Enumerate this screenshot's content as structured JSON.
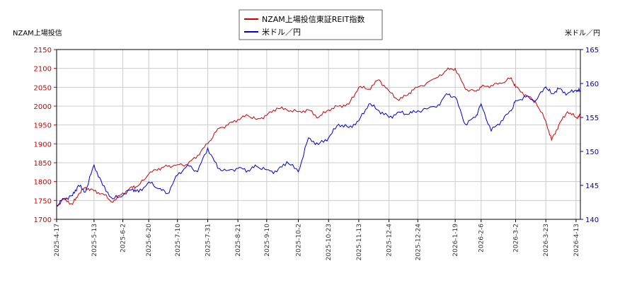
{
  "chart_data": {
    "type": "line",
    "ylabel_left": "NZAM上場投信",
    "ylabel_right": "米ドル／円",
    "legend_position": "top-center",
    "grid": true,
    "y_left_range": [
      1700,
      2150
    ],
    "y_left_ticks": [
      1700,
      1750,
      1800,
      1850,
      1900,
      1950,
      2000,
      2050,
      2100,
      2150
    ],
    "y_right_range": [
      140,
      165
    ],
    "y_right_ticks": [
      140,
      145,
      150,
      155,
      160,
      165
    ],
    "x_range": [
      "2025-04-17",
      "2026-04-16"
    ],
    "x_ticks": [
      "2025-4-17",
      "2025-5-13",
      "2025-6-2",
      "2025-6-20",
      "2025-7-10",
      "2025-7-31",
      "2025-8-21",
      "2025-9-10",
      "2025-10-2",
      "2025-10-23",
      "2025-11-13",
      "2025-12-4",
      "2025-12-24",
      "2026-1-19",
      "2026-2-6",
      "2026-3-2",
      "2026-3-23",
      "2026-4-13"
    ],
    "series": [
      {
        "name": "NZAM上場投信東証REIT指数",
        "color": "#cc0000",
        "axis": "left",
        "points": [
          [
            "2025-04-17",
            1735
          ],
          [
            "2025-04-22",
            1755
          ],
          [
            "2025-04-28",
            1740
          ],
          [
            "2025-05-02",
            1765
          ],
          [
            "2025-05-07",
            1785
          ],
          [
            "2025-05-13",
            1775
          ],
          [
            "2025-05-19",
            1768
          ],
          [
            "2025-05-26",
            1745
          ],
          [
            "2025-06-02",
            1770
          ],
          [
            "2025-06-09",
            1785
          ],
          [
            "2025-06-13",
            1790
          ],
          [
            "2025-06-20",
            1820
          ],
          [
            "2025-06-27",
            1835
          ],
          [
            "2025-07-03",
            1840
          ],
          [
            "2025-07-10",
            1845
          ],
          [
            "2025-07-17",
            1845
          ],
          [
            "2025-07-24",
            1870
          ],
          [
            "2025-07-31",
            1900
          ],
          [
            "2025-08-07",
            1940
          ],
          [
            "2025-08-14",
            1950
          ],
          [
            "2025-08-21",
            1965
          ],
          [
            "2025-08-28",
            1975
          ],
          [
            "2025-09-03",
            1965
          ],
          [
            "2025-09-10",
            1975
          ],
          [
            "2025-09-17",
            1995
          ],
          [
            "2025-09-24",
            1990
          ],
          [
            "2025-10-02",
            1985
          ],
          [
            "2025-10-09",
            1990
          ],
          [
            "2025-10-16",
            1970
          ],
          [
            "2025-10-23",
            1990
          ],
          [
            "2025-10-30",
            2000
          ],
          [
            "2025-11-06",
            2005
          ],
          [
            "2025-11-13",
            2050
          ],
          [
            "2025-11-20",
            2045
          ],
          [
            "2025-11-27",
            2070
          ],
          [
            "2025-12-04",
            2040
          ],
          [
            "2025-12-11",
            2015
          ],
          [
            "2025-12-18",
            2035
          ],
          [
            "2025-12-24",
            2050
          ],
          [
            "2026-01-06",
            2075
          ],
          [
            "2026-01-13",
            2095
          ],
          [
            "2026-01-19",
            2100
          ],
          [
            "2026-01-26",
            2045
          ],
          [
            "2026-02-02",
            2040
          ],
          [
            "2026-02-06",
            2050
          ],
          [
            "2026-02-13",
            2055
          ],
          [
            "2026-02-20",
            2060
          ],
          [
            "2026-02-27",
            2075
          ],
          [
            "2026-03-02",
            2050
          ],
          [
            "2026-03-09",
            2030
          ],
          [
            "2026-03-16",
            2010
          ],
          [
            "2026-03-23",
            1960
          ],
          [
            "2026-03-27",
            1910
          ],
          [
            "2026-04-01",
            1950
          ],
          [
            "2026-04-07",
            1985
          ],
          [
            "2026-04-13",
            1970
          ],
          [
            "2026-04-16",
            1975
          ]
        ]
      },
      {
        "name": "米ドル／円",
        "color": "#0000cc",
        "axis": "right",
        "points": [
          [
            "2025-04-17",
            142.0
          ],
          [
            "2025-04-22",
            143.0
          ],
          [
            "2025-04-28",
            143.5
          ],
          [
            "2025-05-02",
            145.0
          ],
          [
            "2025-05-07",
            144.0
          ],
          [
            "2025-05-13",
            148.0
          ],
          [
            "2025-05-19",
            145.0
          ],
          [
            "2025-05-26",
            143.0
          ],
          [
            "2025-06-02",
            143.5
          ],
          [
            "2025-06-09",
            144.5
          ],
          [
            "2025-06-13",
            144.0
          ],
          [
            "2025-06-20",
            145.5
          ],
          [
            "2025-06-27",
            144.5
          ],
          [
            "2025-07-03",
            143.8
          ],
          [
            "2025-07-10",
            146.5
          ],
          [
            "2025-07-17",
            148.0
          ],
          [
            "2025-07-24",
            147.0
          ],
          [
            "2025-07-31",
            150.5
          ],
          [
            "2025-08-07",
            147.5
          ],
          [
            "2025-08-14",
            147.2
          ],
          [
            "2025-08-21",
            147.5
          ],
          [
            "2025-08-28",
            147.2
          ],
          [
            "2025-09-03",
            147.8
          ],
          [
            "2025-09-10",
            147.3
          ],
          [
            "2025-09-17",
            147.0
          ],
          [
            "2025-09-24",
            148.5
          ],
          [
            "2025-10-02",
            147.0
          ],
          [
            "2025-10-09",
            152.0
          ],
          [
            "2025-10-16",
            151.0
          ],
          [
            "2025-10-23",
            152.0
          ],
          [
            "2025-10-30",
            154.0
          ],
          [
            "2025-11-06",
            153.5
          ],
          [
            "2025-11-13",
            154.5
          ],
          [
            "2025-11-20",
            157.0
          ],
          [
            "2025-11-27",
            156.0
          ],
          [
            "2025-12-04",
            155.0
          ],
          [
            "2025-12-11",
            155.8
          ],
          [
            "2025-12-18",
            155.5
          ],
          [
            "2025-12-24",
            156.0
          ],
          [
            "2026-01-06",
            156.5
          ],
          [
            "2026-01-13",
            158.5
          ],
          [
            "2026-01-19",
            158.0
          ],
          [
            "2026-01-26",
            154.0
          ],
          [
            "2026-02-02",
            155.0
          ],
          [
            "2026-02-06",
            157.0
          ],
          [
            "2026-02-13",
            153.0
          ],
          [
            "2026-02-20",
            154.5
          ],
          [
            "2026-02-27",
            156.0
          ],
          [
            "2026-03-02",
            157.5
          ],
          [
            "2026-03-09",
            158.0
          ],
          [
            "2026-03-16",
            157.5
          ],
          [
            "2026-03-23",
            159.5
          ],
          [
            "2026-03-27",
            158.5
          ],
          [
            "2026-04-01",
            159.2
          ],
          [
            "2026-04-07",
            158.5
          ],
          [
            "2026-04-13",
            159.0
          ],
          [
            "2026-04-16",
            158.8
          ]
        ]
      }
    ]
  }
}
